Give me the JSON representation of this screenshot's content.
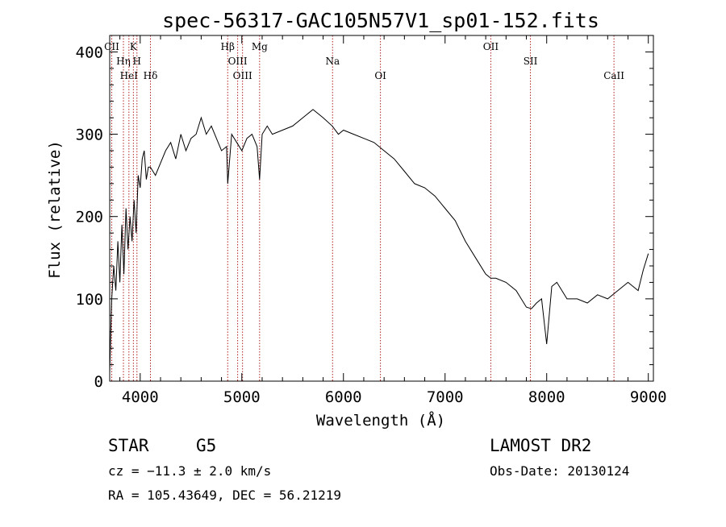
{
  "chart_data": {
    "type": "line",
    "title": "spec-56317-GAC105N57V1_sp01-152.fits",
    "xlabel": "Wavelength (Å)",
    "ylabel": "Flux (relative)",
    "xlim": [
      3700,
      9050
    ],
    "ylim": [
      0,
      420
    ],
    "xticks": [
      4000,
      5000,
      6000,
      7000,
      8000,
      9000
    ],
    "yticks": [
      0,
      100,
      200,
      300,
      400
    ],
    "grid": false,
    "series": [
      {
        "x": [
          3700,
          3710,
          3720,
          3740,
          3760,
          3780,
          3800,
          3820,
          3840,
          3860,
          3880,
          3900,
          3920,
          3940,
          3960,
          3980,
          4000,
          4020,
          4040,
          4060,
          4080,
          4100,
          4150,
          4200,
          4250,
          4300,
          4350,
          4400,
          4450,
          4500,
          4550,
          4600,
          4650,
          4700,
          4750,
          4800,
          4850,
          4861,
          4900,
          4950,
          5000,
          5050,
          5100,
          5150,
          5175,
          5200,
          5250,
          5300,
          5400,
          5500,
          5600,
          5700,
          5800,
          5890,
          5950,
          6000,
          6100,
          6200,
          6300,
          6400,
          6500,
          6600,
          6700,
          6800,
          6900,
          7000,
          7100,
          7200,
          7300,
          7400,
          7450,
          7500,
          7600,
          7650,
          7700,
          7750,
          7800,
          7850,
          7900,
          7950,
          8000,
          8050,
          8100,
          8200,
          8300,
          8400,
          8500,
          8600,
          8700,
          8800,
          8900,
          8950,
          9000
        ],
        "values": [
          10,
          60,
          100,
          140,
          110,
          170,
          120,
          190,
          130,
          210,
          160,
          200,
          170,
          220,
          180,
          250,
          235,
          270,
          280,
          245,
          260,
          260,
          250,
          265,
          280,
          290,
          270,
          300,
          280,
          295,
          300,
          320,
          300,
          310,
          295,
          280,
          285,
          240,
          300,
          290,
          280,
          295,
          300,
          285,
          245,
          300,
          310,
          300,
          305,
          310,
          320,
          330,
          320,
          310,
          300,
          305,
          300,
          295,
          290,
          280,
          270,
          255,
          240,
          235,
          225,
          210,
          195,
          170,
          150,
          130,
          125,
          125,
          120,
          115,
          110,
          100,
          90,
          88,
          95,
          100,
          45,
          115,
          120,
          100,
          100,
          95,
          105,
          100,
          110,
          120,
          110,
          135,
          155
        ]
      }
    ],
    "lines": [
      {
        "label": "CII",
        "x": 3720
      },
      {
        "label": "Hη",
        "x": 3835
      },
      {
        "label": "HeI",
        "x": 3889
      },
      {
        "label": "K",
        "x": 3933
      },
      {
        "label": "H",
        "x": 3968
      },
      {
        "label": "Hδ",
        "x": 4101
      },
      {
        "label": "Hβ",
        "x": 4861
      },
      {
        "label": "OIII",
        "x": 4959
      },
      {
        "label": "OIII",
        "x": 5007
      },
      {
        "label": "Mg",
        "x": 5175
      },
      {
        "label": "Na",
        "x": 5893
      },
      {
        "label": "OI",
        "x": 6364
      },
      {
        "label": "OII",
        "x": 7450
      },
      {
        "label": "SII",
        "x": 7840
      },
      {
        "label": "CaII",
        "x": 8662
      }
    ]
  },
  "info": {
    "object_class": "STAR",
    "subclass": "G5",
    "survey": "LAMOST DR2",
    "cz": "cz = −11.3 ± 2.0 km/s",
    "obs_date": "Obs-Date: 20130124",
    "coords": "RA = 105.43649, DEC =  56.21219"
  },
  "colors": {
    "line_marker": "#b22222",
    "spectrum": "#000000"
  }
}
